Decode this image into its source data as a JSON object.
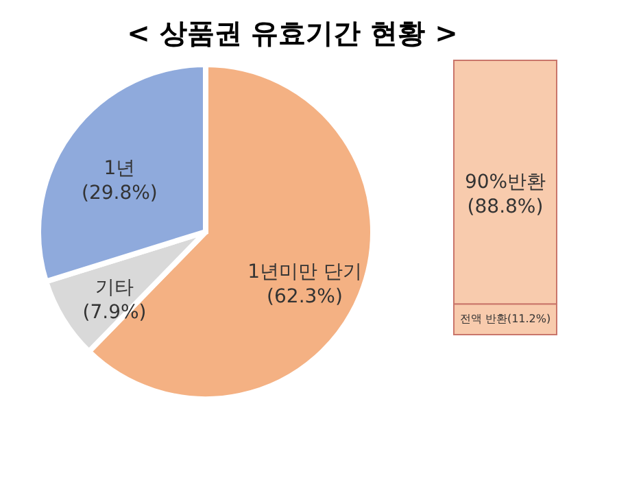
{
  "chart_data": [
    {
      "type": "pie",
      "title": "< 상품권 유효기간 현황 >",
      "categories": [
        "1년미만 단기",
        "기타",
        "1년"
      ],
      "values": [
        62.3,
        7.9,
        29.8
      ],
      "colors": [
        "#f4b183",
        "#d9d9d9",
        "#8faadc"
      ],
      "value_labels": [
        "(62.3%)",
        "(7.9%)",
        "(29.8%)"
      ]
    },
    {
      "type": "bar",
      "stacked": true,
      "categories": [
        null
      ],
      "series": [
        {
          "name": "전액 반환",
          "color": "#f8cbad",
          "values": [
            11.2
          ],
          "value_labels": [
            "(11.2%)"
          ]
        },
        {
          "name": "90%반환",
          "color": "#f8cbad",
          "values": [
            88.8
          ],
          "value_labels": [
            "(88.8%)"
          ]
        }
      ]
    }
  ]
}
